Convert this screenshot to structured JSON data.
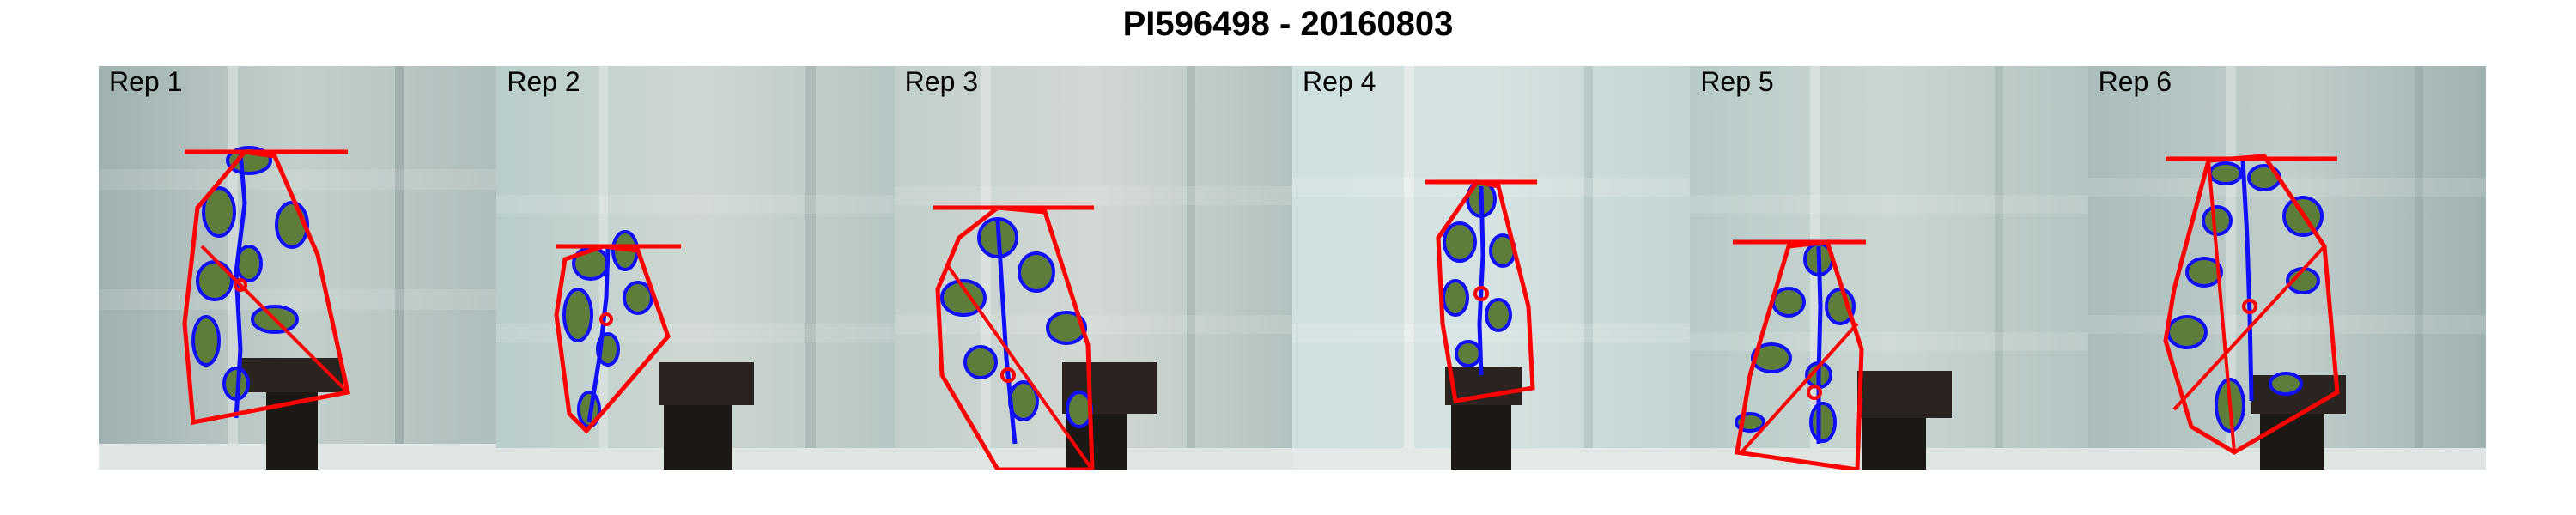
{
  "title": "PI596498 - 20160803",
  "panels": [
    {
      "label": "Rep 1"
    },
    {
      "label": "Rep 2"
    },
    {
      "label": "Rep 3"
    },
    {
      "label": "Rep 4"
    },
    {
      "label": "Rep 5"
    },
    {
      "label": "Rep 6"
    }
  ],
  "colors": {
    "hull": "#ff0000",
    "contour": "#1010ff",
    "leaf": "#5e7d3a",
    "pot": "#2a2320",
    "stand": "#1c1816"
  }
}
